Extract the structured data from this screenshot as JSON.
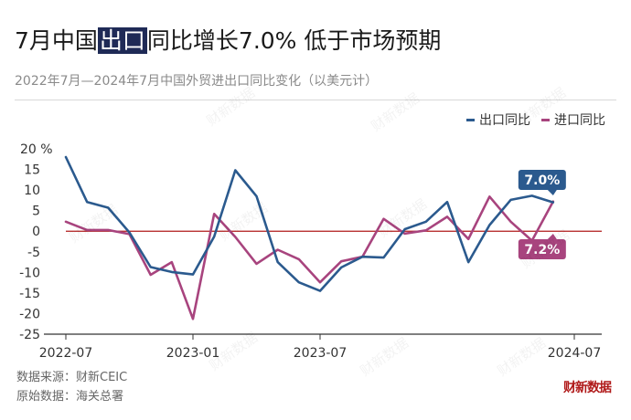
{
  "header": {
    "title_pre": "7月中国",
    "title_hl": "出口",
    "title_post": "同比增长7.0% 低于市场预期",
    "subtitle": "2022年7月—2024年7月中国外贸进出口同比变化（以美元计）"
  },
  "legend": [
    {
      "label": "出口同比",
      "color": "#2b5a8e"
    },
    {
      "label": "进口同比",
      "color": "#a8447e"
    }
  ],
  "footer": {
    "source": "数据来源：财新CEIC",
    "original": "原始数据：海关总署"
  },
  "logo": "财新数据",
  "watermark": "财新数据",
  "chart_data": {
    "type": "line",
    "x": [
      "2022-07",
      "2022-08",
      "2022-09",
      "2022-10",
      "2022-11",
      "2022-12",
      "2023-01",
      "2023-02",
      "2023-03",
      "2023-04",
      "2023-05",
      "2023-06",
      "2023-07",
      "2023-08",
      "2023-09",
      "2023-10",
      "2023-11",
      "2023-12",
      "2024-01",
      "2024-02",
      "2024-03",
      "2024-04",
      "2024-05",
      "2024-06",
      "2024-07"
    ],
    "series": [
      {
        "name": "出口同比",
        "color": "#2b5a8e",
        "values": [
          18.0,
          7.1,
          5.7,
          -0.3,
          -8.7,
          -9.9,
          -10.5,
          -1.3,
          14.8,
          8.5,
          -7.5,
          -12.4,
          -14.5,
          -8.8,
          -6.2,
          -6.4,
          0.5,
          2.3,
          7.1,
          -7.5,
          1.5,
          7.6,
          8.6,
          7.0,
          null
        ],
        "label": "7.0%"
      },
      {
        "name": "进口同比",
        "color": "#a8447e",
        "values": [
          2.3,
          0.3,
          0.3,
          -0.7,
          -10.6,
          -7.5,
          -21.3,
          4.2,
          -1.4,
          -7.9,
          -4.5,
          -6.8,
          -12.4,
          -7.3,
          -6.2,
          3.0,
          -0.6,
          0.2,
          3.5,
          -1.9,
          8.4,
          2.3,
          -2.3,
          7.2,
          null
        ],
        "label": "7.2%"
      }
    ],
    "y_ticks": [
      "20 %",
      "15",
      "10",
      "5",
      "0",
      "-5",
      "-10",
      "-15",
      "-20",
      "-25"
    ],
    "x_ticks": [
      {
        "label": "2022-07",
        "index": 0
      },
      {
        "label": "2023-01",
        "index": 6
      },
      {
        "label": "2023-07",
        "index": 12
      },
      {
        "label": "2024-07",
        "index": 24
      }
    ],
    "ylim": [
      -25,
      20
    ],
    "zero_line_color": "#b01a1a",
    "grid": false
  }
}
